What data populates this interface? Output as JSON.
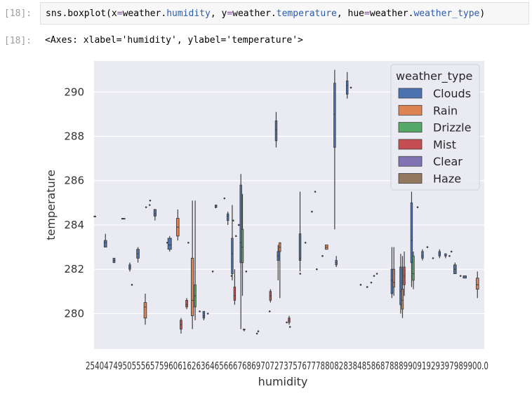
{
  "cell": {
    "in_prompt": "[18]:",
    "out_prompt": "[18]:",
    "code_parts": [
      "sns.boxplot(x",
      "=",
      "weather.",
      "humidity",
      ", y",
      "=",
      "weather.",
      "temperature",
      ", hue",
      "=",
      "weather.",
      "weather_type",
      ")"
    ],
    "output_text": "<Axes: xlabel='humidity', ylabel='temperature'>"
  },
  "chart_data": {
    "type": "box",
    "xlabel": "humidity",
    "ylabel": "temperature",
    "ylim": [
      278.4,
      291.4
    ],
    "yticks": [
      280,
      282,
      284,
      286,
      288,
      290
    ],
    "x_tick_text": "25404749505556575960616263646566676869707273757677788082838485868788899091929397989900.0",
    "grid": true,
    "legend": {
      "title": "weather_type",
      "placement": "top-right",
      "entries": [
        {
          "name": "Clouds",
          "color": "#4c72b0"
        },
        {
          "name": "Rain",
          "color": "#dd8452"
        },
        {
          "name": "Drizzle",
          "color": "#55a868"
        },
        {
          "name": "Mist",
          "color": "#c44e52"
        },
        {
          "name": "Clear",
          "color": "#8172b3"
        },
        {
          "name": "Haze",
          "color": "#937860"
        }
      ]
    },
    "boxes": [
      {
        "x": 0.5,
        "type": "Clouds",
        "lo": 284.4,
        "q1": 284.4,
        "med": 284.4,
        "q3": 284.4,
        "hi": 284.4,
        "w": 0.4
      },
      {
        "x": 7.0,
        "type": "Clouds",
        "lo": 283.0,
        "q1": 283.0,
        "med": 283.2,
        "q3": 283.3,
        "hi": 283.6,
        "w": 1.6
      },
      {
        "x": 12.3,
        "type": "Clouds",
        "lo": 282.3,
        "q1": 282.3,
        "med": 282.4,
        "q3": 282.5,
        "hi": 282.5,
        "w": 1.2
      },
      {
        "x": 18.0,
        "type": "Clouds",
        "lo": 284.3,
        "q1": 284.3,
        "med": 284.3,
        "q3": 284.3,
        "hi": 284.3,
        "w": 2.0
      },
      {
        "x": 22.0,
        "type": "Clouds",
        "lo": 281.9,
        "q1": 282.0,
        "med": 282.1,
        "q3": 282.2,
        "hi": 282.3,
        "w": 1.0
      },
      {
        "x": 27.0,
        "type": "Clouds",
        "lo": 282.3,
        "q1": 282.5,
        "med": 282.7,
        "q3": 282.9,
        "hi": 283.0,
        "w": 1.6
      },
      {
        "x": 31.5,
        "type": "Rain",
        "lo": 279.5,
        "q1": 279.8,
        "med": 280.3,
        "q3": 280.5,
        "hi": 280.9,
        "w": 1.6
      },
      {
        "x": 37.5,
        "type": "Clouds",
        "lo": 284.2,
        "q1": 284.4,
        "med": 284.5,
        "q3": 284.7,
        "hi": 284.7,
        "w": 1.4
      },
      {
        "x": 46.5,
        "type": "Clouds",
        "lo": 282.8,
        "q1": 282.9,
        "med": 283.1,
        "q3": 283.4,
        "hi": 283.5,
        "w": 2.2
      },
      {
        "x": 51.5,
        "type": "Rain",
        "lo": 283.3,
        "q1": 283.5,
        "med": 283.9,
        "q3": 284.3,
        "hi": 284.7,
        "w": 1.6
      },
      {
        "x": 53.5,
        "type": "Mist",
        "lo": 279.1,
        "q1": 279.3,
        "med": 279.5,
        "q3": 279.7,
        "hi": 279.8,
        "w": 1.2
      },
      {
        "x": 57.0,
        "type": "Mist",
        "lo": 280.2,
        "q1": 280.3,
        "med": 280.4,
        "q3": 280.6,
        "hi": 280.7,
        "w": 1.2
      },
      {
        "x": 60.5,
        "type": "Rain",
        "lo": 279.3,
        "q1": 279.9,
        "med": 280.6,
        "q3": 282.5,
        "hi": 285.1,
        "w": 1.5
      },
      {
        "x": 62.2,
        "type": "Drizzle",
        "lo": 279.7,
        "q1": 280.3,
        "med": 280.8,
        "q3": 281.3,
        "hi": 285.1,
        "w": 1.0
      },
      {
        "x": 67.5,
        "type": "Clouds",
        "lo": 279.7,
        "q1": 279.8,
        "med": 279.9,
        "q3": 280.1,
        "hi": 280.1,
        "w": 1.0
      },
      {
        "x": 75.0,
        "type": "Clouds",
        "lo": 284.8,
        "q1": 284.8,
        "med": 284.9,
        "q3": 284.9,
        "hi": 284.9,
        "w": 1.0
      },
      {
        "x": 82.3,
        "type": "Clouds",
        "lo": 284.0,
        "q1": 284.2,
        "med": 284.4,
        "q3": 284.5,
        "hi": 284.6,
        "w": 1.0
      },
      {
        "x": 85.0,
        "type": "Clouds",
        "lo": 281.5,
        "q1": 281.8,
        "med": 282.7,
        "q3": 283.4,
        "hi": 284.9,
        "w": 1.0
      },
      {
        "x": 86.5,
        "type": "Mist",
        "lo": 280.4,
        "q1": 280.6,
        "med": 280.8,
        "q3": 281.2,
        "hi": 282.0,
        "w": 1.0
      },
      {
        "x": 90.3,
        "type": "Clouds",
        "lo": 279.3,
        "q1": 282.3,
        "med": 283.2,
        "q3": 285.8,
        "hi": 286.3,
        "w": 0.8
      },
      {
        "x": 91.3,
        "type": "Drizzle",
        "lo": 280.8,
        "q1": 282.3,
        "med": 283.0,
        "q3": 283.8,
        "hi": 285.4,
        "w": 0.8
      },
      {
        "x": 92.3,
        "type": "Haze",
        "lo": 279.2,
        "q1": 279.3,
        "med": 279.3,
        "q3": 279.3,
        "hi": 279.3,
        "w": 0.5
      },
      {
        "x": 108.5,
        "type": "Mist",
        "lo": 280.5,
        "q1": 280.6,
        "med": 280.8,
        "q3": 281.0,
        "hi": 281.1,
        "w": 1.0
      },
      {
        "x": 112.0,
        "type": "Clouds",
        "lo": 287.5,
        "q1": 287.8,
        "med": 288.3,
        "q3": 288.7,
        "hi": 289.1,
        "w": 0.8
      },
      {
        "x": 113.2,
        "type": "Clouds",
        "lo": 281.5,
        "q1": 282.4,
        "med": 282.6,
        "q3": 282.8,
        "hi": 283.1,
        "w": 0.8
      },
      {
        "x": 114.3,
        "type": "Rain",
        "lo": 280.7,
        "q1": 282.8,
        "med": 283.0,
        "q3": 283.2,
        "hi": 283.2,
        "w": 0.8
      },
      {
        "x": 120.0,
        "type": "Mist",
        "lo": 279.5,
        "q1": 279.6,
        "med": 279.7,
        "q3": 279.8,
        "hi": 279.9,
        "w": 1.0
      },
      {
        "x": 126.7,
        "type": "Clouds",
        "lo": 281.9,
        "q1": 282.4,
        "med": 282.5,
        "q3": 283.6,
        "hi": 285.5,
        "w": 0.9
      },
      {
        "x": 143.0,
        "type": "Rain",
        "lo": 282.9,
        "q1": 282.9,
        "med": 283.0,
        "q3": 283.1,
        "hi": 283.1,
        "w": 1.6
      },
      {
        "x": 148.0,
        "type": "Clouds",
        "lo": 283.8,
        "q1": 287.5,
        "med": 289.0,
        "q3": 290.4,
        "hi": 291.0,
        "w": 0.8
      },
      {
        "x": 149.0,
        "type": "Clouds",
        "lo": 282.1,
        "q1": 282.2,
        "med": 282.3,
        "q3": 282.4,
        "hi": 282.6,
        "w": 1.0
      },
      {
        "x": 155.7,
        "type": "Clouds",
        "lo": 289.7,
        "q1": 289.9,
        "med": 290.3,
        "q3": 290.5,
        "hi": 290.9,
        "w": 0.9
      },
      {
        "x": 183.2,
        "type": "Clouds",
        "lo": 280.7,
        "q1": 280.9,
        "med": 281.5,
        "q3": 282.0,
        "hi": 283.0,
        "w": 1.1
      },
      {
        "x": 184.4,
        "type": "Rain",
        "lo": 280.8,
        "q1": 281.2,
        "med": 281.4,
        "q3": 282.0,
        "hi": 283.0,
        "w": 1.1
      },
      {
        "x": 188.6,
        "type": "Clouds",
        "lo": 280.0,
        "q1": 280.4,
        "med": 281.0,
        "q3": 282.1,
        "hi": 282.7,
        "w": 1.0
      },
      {
        "x": 189.7,
        "type": "Rain",
        "lo": 279.8,
        "q1": 280.2,
        "med": 280.6,
        "q3": 281.1,
        "hi": 282.6,
        "w": 1.0
      },
      {
        "x": 190.8,
        "type": "Mist",
        "lo": 280.8,
        "q1": 281.3,
        "med": 281.7,
        "q3": 282.1,
        "hi": 282.8,
        "w": 1.0
      },
      {
        "x": 195.3,
        "type": "Clouds",
        "lo": 281.2,
        "q1": 282.3,
        "med": 283.3,
        "q3": 285.0,
        "hi": 285.5,
        "w": 1.0
      },
      {
        "x": 196.4,
        "type": "Drizzle",
        "lo": 281.1,
        "q1": 281.5,
        "med": 281.8,
        "q3": 282.6,
        "hi": 282.8,
        "w": 1.0
      },
      {
        "x": 202.0,
        "type": "Clouds",
        "lo": 282.4,
        "q1": 282.5,
        "med": 282.6,
        "q3": 282.8,
        "hi": 282.9,
        "w": 1.0
      },
      {
        "x": 212.5,
        "type": "Clouds",
        "lo": 282.5,
        "q1": 282.6,
        "med": 282.7,
        "q3": 282.8,
        "hi": 282.9,
        "w": 0.9
      },
      {
        "x": 216.2,
        "type": "Clouds",
        "lo": 282.5,
        "q1": 282.6,
        "med": 282.6,
        "q3": 282.7,
        "hi": 282.7,
        "w": 0.9
      },
      {
        "x": 222.0,
        "type": "Clouds",
        "lo": 281.8,
        "q1": 281.8,
        "med": 282.0,
        "q3": 282.2,
        "hi": 282.3,
        "w": 1.6
      },
      {
        "x": 228.0,
        "type": "Clouds",
        "lo": 281.6,
        "q1": 281.6,
        "med": 281.7,
        "q3": 281.7,
        "hi": 281.7,
        "w": 2.0
      },
      {
        "x": 235.8,
        "type": "Rain",
        "lo": 280.7,
        "q1": 281.1,
        "med": 281.3,
        "q3": 281.6,
        "hi": 281.9,
        "w": 1.6
      }
    ],
    "fliers": [
      [
        34.2,
        284.9
      ],
      [
        34.5,
        285.1
      ],
      [
        23.3,
        281.3
      ],
      [
        32.0,
        284.8
      ],
      [
        45.0,
        283.2
      ],
      [
        58.0,
        283.2
      ],
      [
        65.0,
        280.1
      ],
      [
        70.0,
        280.0
      ],
      [
        73.0,
        281.9
      ],
      [
        74.8,
        284.8
      ],
      [
        80.2,
        285.2
      ],
      [
        84.6,
        281.7
      ],
      [
        85.6,
        284.2
      ],
      [
        87.3,
        283.5
      ],
      [
        89.0,
        284.0
      ],
      [
        93.6,
        281.9
      ],
      [
        100.2,
        279.1
      ],
      [
        101.0,
        279.2
      ],
      [
        108.0,
        280.1
      ],
      [
        118.5,
        279.6
      ],
      [
        120.5,
        279.4
      ],
      [
        130.0,
        283.2
      ],
      [
        134.0,
        284.6
      ],
      [
        136.0,
        285.5
      ],
      [
        137.0,
        282.0
      ],
      [
        140.5,
        282.6
      ],
      [
        158.0,
        290.2
      ],
      [
        164.0,
        281.3
      ],
      [
        168.0,
        281.2
      ],
      [
        170.5,
        281.4
      ],
      [
        172.2,
        281.7
      ],
      [
        174.0,
        281.8
      ],
      [
        199.0,
        284.8
      ],
      [
        205.0,
        283.0
      ],
      [
        208.5,
        282.5
      ],
      [
        218.6,
        282.6
      ],
      [
        219.8,
        282.8
      ],
      [
        225.4,
        281.7
      ],
      [
        126.8,
        281.8
      ]
    ]
  }
}
